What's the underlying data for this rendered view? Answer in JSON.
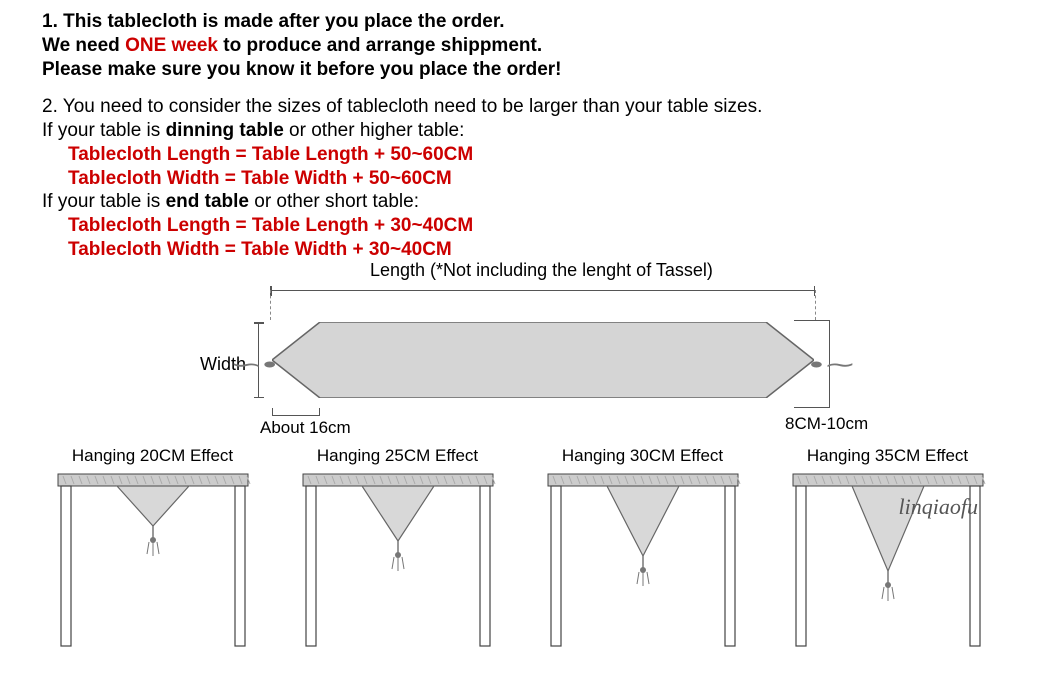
{
  "notice": {
    "line1_a": "1. This tablecloth is made after you place the order.",
    "line2_a": "We need ",
    "line2_b": "ONE week",
    "line2_c": " to produce and arrange shippment.",
    "line3": "Please make sure you know it before you place the order!",
    "line4": "2. You need to consider the sizes of tablecloth need to be larger than your table sizes.",
    "line5_a": "If your table is ",
    "line5_b": "dinning table",
    "line5_c": " or other higher table:",
    "line6": "Tablecloth Length = Table Length + 50~60CM",
    "line7": "Tablecloth Width = Table Width + 50~60CM",
    "line8_a": "If your table is ",
    "line8_b": "end table",
    "line8_c": " or other short table:",
    "line9": "Tablecloth Length = Table Length + 30~40CM",
    "line10": "Tablecloth Width = Table Width + 30~40CM"
  },
  "diagram": {
    "length_label": "Length  (*Not including the lenght of Tassel)",
    "width_label": "Width",
    "about16": "About 16cm",
    "cm810": "8CM-10cm",
    "runner_fill": "#d5d5d5",
    "runner_stroke": "#666666",
    "tassel_glyph": "⋯•"
  },
  "hanging": [
    {
      "label": "Hanging 20CM Effect",
      "drop": 40
    },
    {
      "label": "Hanging 25CM Effect",
      "drop": 55
    },
    {
      "label": "Hanging 30CM Effect",
      "drop": 70
    },
    {
      "label": "Hanging 35CM Effect",
      "drop": 85
    }
  ],
  "table_style": {
    "top_fill": "#cccccc",
    "top_pattern": "#aaaaaa",
    "leg_stroke": "#444444",
    "runner_fill": "#d8d8d8",
    "runner_stroke": "#666666",
    "tassel_color": "#777777"
  },
  "watermark": "linqiaofu",
  "colors": {
    "text": "#000000",
    "red": "#cc0000",
    "bg": "#ffffff"
  },
  "typography": {
    "body_fontsize": 19,
    "label_fontsize": 17,
    "family": "Arial"
  }
}
